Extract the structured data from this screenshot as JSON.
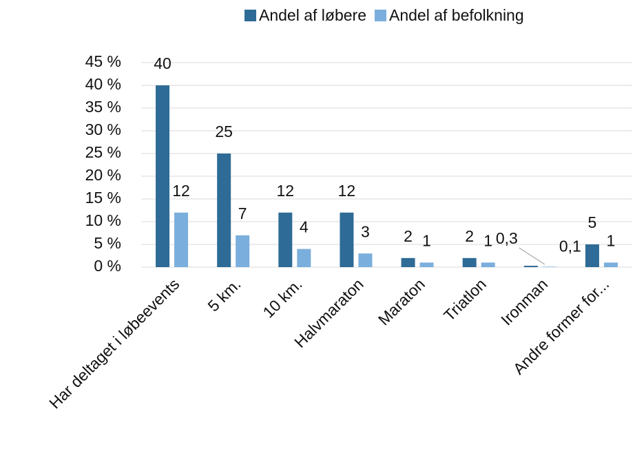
{
  "chart_data": {
    "type": "bar",
    "categories": [
      "Har deltaget i løbeevents",
      "5 km.",
      "10 km.",
      "Halvmaraton",
      "Maraton",
      "Triatlon",
      "Ironman",
      "Andre former for..."
    ],
    "series": [
      {
        "name": "Andel af løbere",
        "color": "#2e6b96",
        "values": [
          40,
          25,
          12,
          12,
          2,
          2,
          0.3,
          5
        ],
        "value_labels": [
          "40",
          "25",
          "12",
          "12",
          "2",
          "2",
          "0,3",
          "5"
        ]
      },
      {
        "name": "Andel af befolkning",
        "color": "#7aaedc",
        "values": [
          12,
          7,
          4,
          3,
          1,
          1,
          0.1,
          1
        ],
        "value_labels": [
          "12",
          "7",
          "4",
          "3",
          "1",
          "1",
          "0,1",
          "1"
        ]
      }
    ],
    "ylim": [
      0,
      45
    ],
    "yticks": [
      {
        "value": 0,
        "label": "0 %"
      },
      {
        "value": 5,
        "label": "5 %"
      },
      {
        "value": 10,
        "label": "10 %"
      },
      {
        "value": 15,
        "label": "15 %"
      },
      {
        "value": 20,
        "label": "20 %"
      },
      {
        "value": 25,
        "label": "25 %"
      },
      {
        "value": 30,
        "label": "30 %"
      },
      {
        "value": 35,
        "label": "35 %"
      },
      {
        "value": 40,
        "label": "40 %"
      },
      {
        "value": 45,
        "label": "45 %"
      }
    ],
    "grid": true,
    "legend": "top"
  }
}
